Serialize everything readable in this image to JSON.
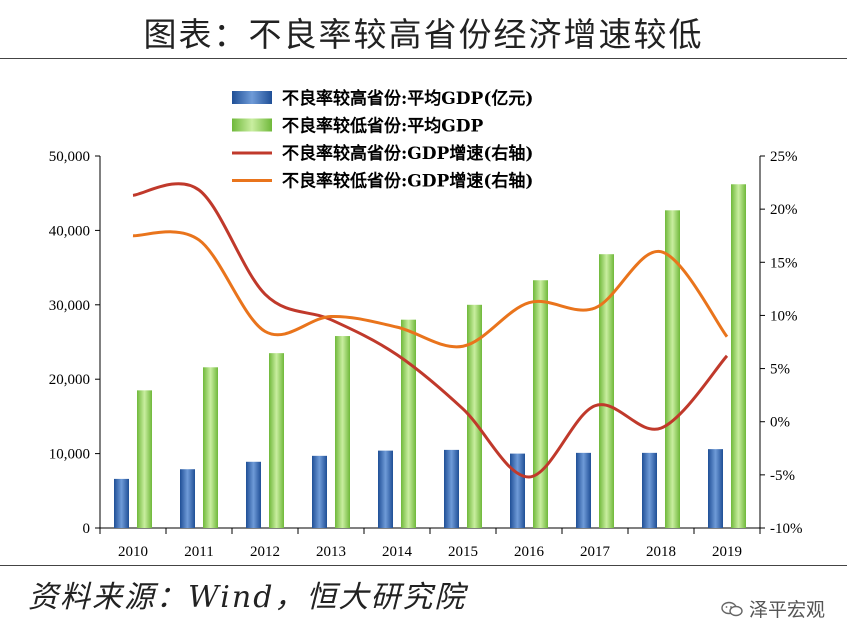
{
  "header": {
    "title": "图表：不良率较高省份经济增速较低"
  },
  "footer": {
    "source": "资料来源：Wind，恒大研究院",
    "watermark": "泽平宏观",
    "watermark_icon": "wechat-icon"
  },
  "chart_data": {
    "type": "bar+line",
    "categories": [
      "2010",
      "2011",
      "2012",
      "2013",
      "2014",
      "2015",
      "2016",
      "2017",
      "2018",
      "2019"
    ],
    "y_left": {
      "ylim": [
        0,
        50000
      ],
      "ticks": [
        "0",
        "10,000",
        "20,000",
        "30,000",
        "40,000",
        "50,000"
      ],
      "tick_values": [
        0,
        10000,
        20000,
        30000,
        40000,
        50000
      ]
    },
    "y_right": {
      "ylim": [
        -10,
        25
      ],
      "ticks": [
        "-10%",
        "-5%",
        "0%",
        "5%",
        "10%",
        "15%",
        "20%",
        "25%"
      ],
      "tick_values": [
        -10,
        -5,
        0,
        5,
        10,
        15,
        20,
        25
      ]
    },
    "legend_position": "top",
    "series": [
      {
        "name": "不良率较高省份:平均GDP(亿元)",
        "kind": "bar",
        "axis": "left",
        "color": "#3a6fb8",
        "values": [
          6600,
          7900,
          8900,
          9700,
          10400,
          10500,
          10000,
          10100,
          10100,
          10600
        ]
      },
      {
        "name": "不良率较低省份:平均GDP",
        "kind": "bar",
        "axis": "left",
        "color": "#8fcf4f",
        "values": [
          18500,
          21600,
          23500,
          25800,
          28000,
          30000,
          33300,
          36800,
          42700,
          46200
        ]
      },
      {
        "name": "不良率较高省份:GDP增速(右轴)",
        "kind": "line",
        "axis": "right",
        "color": "#c0392b",
        "values": [
          21.3,
          21.8,
          12.0,
          9.6,
          6.3,
          1.2,
          -5.2,
          1.5,
          -0.6,
          6.2
        ]
      },
      {
        "name": "不良率较低省份:GDP增速(右轴)",
        "kind": "line",
        "axis": "right",
        "color": "#e9741c",
        "values": [
          17.5,
          17.1,
          8.5,
          9.9,
          8.9,
          7.1,
          11.2,
          10.7,
          16.0,
          8.0
        ]
      }
    ]
  }
}
